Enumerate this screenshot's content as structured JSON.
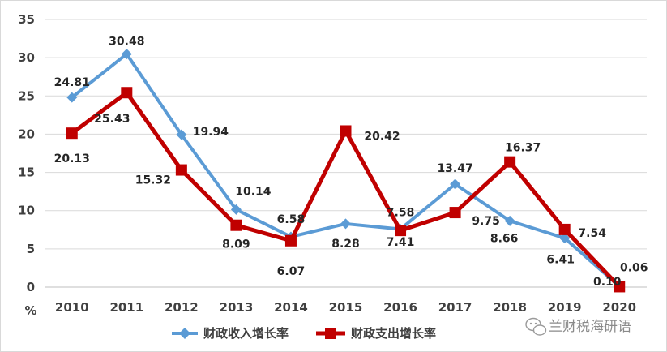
{
  "chart_data": {
    "type": "line",
    "title": "",
    "xlabel": "",
    "ylabel": "%",
    "ylim": [
      0,
      35
    ],
    "yticks": [
      0,
      5,
      10,
      15,
      20,
      25,
      30,
      35
    ],
    "grid": "horizontal",
    "legend_position": "bottom",
    "categories": [
      "2010",
      "2011",
      "2012",
      "2013",
      "2014",
      "2015",
      "2016",
      "2017",
      "2018",
      "2019",
      "2020"
    ],
    "series": [
      {
        "name": "财政收入增长率",
        "color": "#5B9BD5",
        "marker": "diamond",
        "values": [
          24.81,
          30.48,
          19.94,
          10.14,
          6.58,
          8.28,
          7.58,
          13.47,
          8.66,
          6.41,
          0.1
        ],
        "labels": [
          "24.81",
          "30.48",
          "19.94",
          "10.14",
          "6.58",
          "8.28",
          "7.58",
          "13.47",
          "8.66",
          "6.41",
          "0.10"
        ]
      },
      {
        "name": "财政支出增长率",
        "color": "#C00000",
        "marker": "square",
        "values": [
          20.13,
          25.43,
          15.32,
          8.09,
          6.07,
          20.42,
          7.41,
          9.75,
          16.37,
          7.54,
          0.06
        ],
        "labels": [
          "20.13",
          "25.43",
          "15.32",
          "8.09",
          "6.07",
          "20.42",
          "7.41",
          "9.75",
          "16.37",
          "7.54",
          "0.06"
        ]
      }
    ]
  },
  "watermark": {
    "icon": "wechat-icon",
    "text": "兰财税海研语"
  }
}
